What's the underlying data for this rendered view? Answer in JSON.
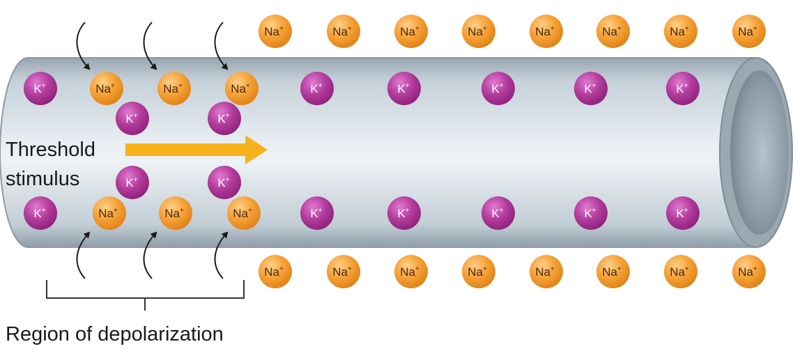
{
  "labels": {
    "stimulus_line1": "Threshold",
    "stimulus_line2": "stimulus",
    "region": "Region of depolarization"
  },
  "ions": {
    "sodium": {
      "symbol": "Na",
      "charge": "+",
      "color": "#f39a2b"
    },
    "potassium": {
      "symbol": "K",
      "charge": "+",
      "color": "#b0349a"
    }
  },
  "colors": {
    "axon": "#c9d3da",
    "arrow": "#f5b21a",
    "influx_arrow": "#1a1a1a"
  }
}
